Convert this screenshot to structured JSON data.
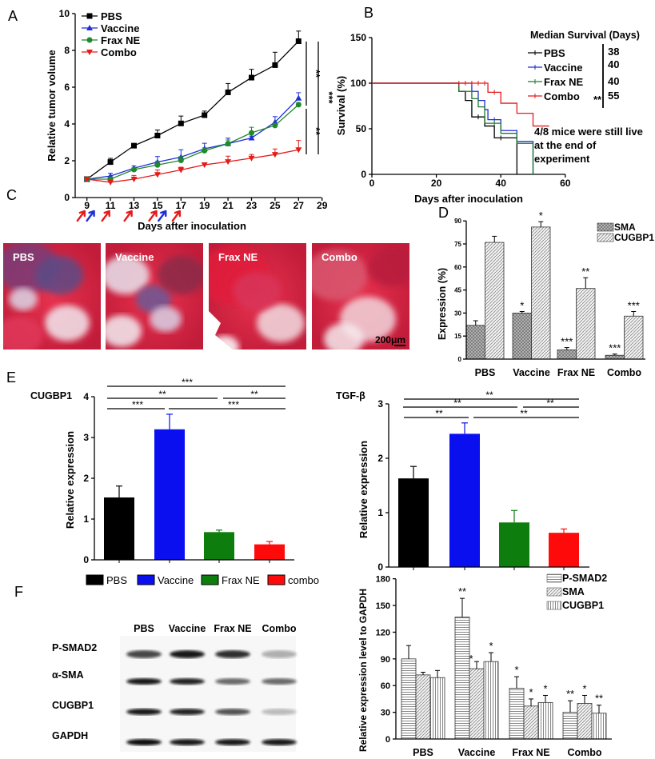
{
  "panel_labels": [
    "A",
    "B",
    "C",
    "D",
    "E",
    "F"
  ],
  "chart_data": [
    {
      "panel": "A",
      "type": "line",
      "xlabel": "Days after inoculation",
      "ylabel": "Relative tumor volume",
      "xlim": [
        8,
        29
      ],
      "ylim": [
        0,
        10
      ],
      "xticks": [
        9,
        11,
        13,
        15,
        17,
        19,
        21,
        23,
        25,
        27,
        29
      ],
      "yticks": [
        0,
        2,
        4,
        6,
        8,
        10
      ],
      "x": [
        9,
        11,
        13,
        15,
        17,
        19,
        21,
        23,
        25,
        27
      ],
      "legend_position": "top-left",
      "series": [
        {
          "name": "PBS",
          "color": "#000000",
          "marker": "square",
          "values": [
            1,
            1.93,
            2.82,
            3.37,
            4.03,
            4.48,
            5.72,
            6.52,
            7.2,
            8.5
          ],
          "errors": [
            0,
            0.2,
            0.1,
            0.3,
            0.4,
            0.22,
            0.48,
            0.45,
            0.7,
            0.55
          ]
        },
        {
          "name": "Vaccine",
          "color": "#1f2fd6",
          "marker": "triangle-up",
          "values": [
            1,
            1.17,
            1.6,
            1.93,
            2.2,
            2.65,
            2.93,
            3.24,
            4.1,
            5.4
          ],
          "errors": [
            0,
            0.15,
            0.12,
            0.3,
            0.4,
            0.3,
            0.3,
            0.1,
            0.3,
            0.3
          ]
        },
        {
          "name": "Frax NE",
          "color": "#1f8a2a",
          "marker": "circle",
          "values": [
            1,
            1.0,
            1.52,
            1.77,
            2.02,
            2.55,
            2.93,
            3.52,
            3.92,
            5.05
          ],
          "errors": [
            0,
            0.1,
            0.1,
            0.2,
            0.2,
            0.15,
            0.2,
            0.3,
            0.1,
            0.1
          ]
        },
        {
          "name": "Combo",
          "color": "#e51b1b",
          "marker": "triangle-down",
          "values": [
            1,
            0.83,
            1.0,
            1.25,
            1.5,
            1.78,
            1.95,
            2.14,
            2.34,
            2.6
          ],
          "errors": [
            0,
            0.1,
            0.2,
            0.25,
            0.15,
            0.1,
            0.3,
            0.2,
            0.3,
            0.5
          ]
        }
      ],
      "significance": [
        {
          "label": "**",
          "compare": [
            "PBS",
            "Vaccine / Frax NE"
          ]
        },
        {
          "label": "**",
          "compare": [
            "Vaccine / Frax NE",
            "Combo"
          ]
        },
        {
          "label": "***",
          "compare": [
            "PBS",
            "Combo"
          ]
        }
      ],
      "injection_arrows": {
        "red_color": "#e51b1b",
        "blue_color": "#1f2fd6",
        "red_days": [
          8.6,
          10.7,
          12.6,
          14.7,
          16.7
        ],
        "blue_days": [
          9.4,
          15.5
        ]
      }
    },
    {
      "panel": "B",
      "type": "line",
      "subtype": "kaplan-meier step",
      "xlabel": "Days after inoculation",
      "ylabel": "Survival (%)",
      "xlim": [
        0,
        60
      ],
      "ylim": [
        0,
        150
      ],
      "xticks": [
        0,
        20,
        40,
        60
      ],
      "yticks": [
        0,
        50,
        100,
        150
      ],
      "legend_title": "Median Survival (Days)",
      "series": [
        {
          "name": "PBS",
          "color": "#000000",
          "median": "38",
          "steps": [
            [
              27,
              91
            ],
            [
              29,
              81
            ],
            [
              31,
              63
            ],
            [
              35,
              53
            ],
            [
              38,
              40
            ],
            [
              45,
              0
            ]
          ],
          "end": 45,
          "censored": [
            [
              33,
              63
            ],
            [
              40,
              40
            ]
          ]
        },
        {
          "name": "Vaccine",
          "color": "#1f2fd6",
          "median": "40",
          "steps": [
            [
              31,
              91
            ],
            [
              33,
              81
            ],
            [
              35,
              71
            ],
            [
              36,
              60
            ],
            [
              40,
              48
            ],
            [
              45,
              36
            ],
            [
              50,
              0
            ]
          ],
          "end": 50,
          "censored": [
            [
              38,
              60
            ]
          ]
        },
        {
          "name": "Frax NE",
          "color": "#1f7a2a",
          "median": "40",
          "steps": [
            [
              27,
              91
            ],
            [
              31,
              83
            ],
            [
              33,
              74
            ],
            [
              35,
              56
            ],
            [
              40,
              45
            ],
            [
              45,
              34
            ],
            [
              50,
              0
            ]
          ],
          "end": 50,
          "censored": [
            [
              38,
              56
            ]
          ]
        },
        {
          "name": "Combo",
          "color": "#e51b1b",
          "median": "55",
          "steps": [
            [
              36,
              90
            ],
            [
              40,
              78
            ],
            [
              45,
              67
            ],
            [
              50,
              53
            ]
          ],
          "end": 55,
          "censored": [
            [
              27,
              100
            ],
            [
              29,
              100
            ],
            [
              31,
              100
            ],
            [
              33,
              100
            ],
            [
              35,
              100
            ],
            [
              38,
              90
            ]
          ]
        }
      ],
      "significance": "**",
      "annotation": [
        "4/8 mice were still live",
        "at the end of",
        "experiment"
      ]
    },
    {
      "panel": "D",
      "type": "bar",
      "ylabel": "Expression (%)",
      "ylim": [
        0,
        90
      ],
      "yticks": [
        0,
        15,
        30,
        45,
        60,
        75,
        90
      ],
      "categories": [
        "PBS",
        "Vaccine",
        "Frax NE",
        "Combo"
      ],
      "legend_position": "top-right",
      "series": [
        {
          "name": "SMA",
          "pattern": "crosshatch",
          "values": [
            22,
            30,
            6,
            2.5
          ],
          "errors": [
            3,
            1,
            1.5,
            0.8
          ],
          "stars": [
            "",
            "*",
            "***",
            "***"
          ]
        },
        {
          "name": "CUGBP1",
          "pattern": "diagonal",
          "values": [
            76,
            86,
            46,
            28
          ],
          "errors": [
            4,
            3.5,
            7,
            3
          ],
          "stars": [
            "",
            "*",
            "**",
            "***"
          ]
        }
      ]
    },
    {
      "panel": "E",
      "type": "bar",
      "title": "CUGBP1",
      "ylabel": "Relative expression",
      "ylim": [
        0,
        4
      ],
      "yticks": [
        0,
        1,
        2,
        3,
        4
      ],
      "categories": [
        "PBS",
        "Vaccine",
        "Frax NE",
        "combo"
      ],
      "colors": [
        "#000000",
        "#0a0ff0",
        "#0d7d0d",
        "#ff0a0a"
      ],
      "values": [
        1.53,
        3.2,
        0.68,
        0.38
      ],
      "errors": [
        0.28,
        0.37,
        0.05,
        0.07
      ],
      "brackets": [
        {
          "groups": [
            0,
            3
          ],
          "label": "***"
        },
        {
          "groups": [
            0,
            2
          ],
          "label": "**"
        },
        {
          "groups": [
            2,
            3
          ],
          "label": "**"
        },
        {
          "groups": [
            0,
            1
          ],
          "label": "***"
        },
        {
          "groups": [
            1,
            3
          ],
          "label": "***"
        }
      ],
      "legend_position": "bottom"
    },
    {
      "panel": "E",
      "type": "bar",
      "title": "TGF-β",
      "ylabel": "Relative expression",
      "ylim": [
        0,
        3
      ],
      "yticks": [
        0,
        1,
        2,
        3
      ],
      "categories": [
        "PBS",
        "Vaccine",
        "Frax NE",
        "combo"
      ],
      "colors": [
        "#000000",
        "#0a0ff0",
        "#0d7d0d",
        "#ff0a0a"
      ],
      "values": [
        1.63,
        2.45,
        0.82,
        0.63
      ],
      "errors": [
        0.22,
        0.2,
        0.22,
        0.07
      ],
      "brackets": [
        {
          "groups": [
            0,
            3
          ],
          "label": "**"
        },
        {
          "groups": [
            0,
            2
          ],
          "label": "**"
        },
        {
          "groups": [
            2,
            3
          ],
          "label": "**"
        },
        {
          "groups": [
            0,
            1
          ],
          "label": "**"
        },
        {
          "groups": [
            1,
            3
          ],
          "label": "**"
        }
      ]
    },
    {
      "panel": "F",
      "type": "bar",
      "ylabel": "Relative expression level to GAPDH",
      "ylim": [
        0,
        180
      ],
      "yticks": [
        0,
        30,
        60,
        90,
        120,
        150,
        180
      ],
      "categories": [
        "PBS",
        "Vaccine",
        "Frax NE",
        "Combo"
      ],
      "legend_position": "top-right",
      "series": [
        {
          "name": "P-SMAD2",
          "pattern": "horizontal",
          "values": [
            90,
            137,
            57,
            30
          ],
          "errors": [
            15,
            21,
            13,
            13
          ],
          "stars": [
            "",
            "**",
            "*",
            "**"
          ]
        },
        {
          "name": "SMA",
          "pattern": "diagonal",
          "values": [
            72,
            79,
            37,
            40
          ],
          "errors": [
            3,
            8,
            8,
            9
          ],
          "stars": [
            "",
            "*",
            "*",
            "*"
          ]
        },
        {
          "name": "CUGBP1",
          "pattern": "vertical",
          "values": [
            69,
            87,
            41,
            29
          ],
          "errors": [
            8,
            10,
            8,
            9
          ],
          "stars": [
            "",
            "*",
            "*",
            "**"
          ]
        }
      ]
    }
  ],
  "micrographs": {
    "labels": [
      "PBS",
      "Vaccine",
      "Frax NE",
      "Combo"
    ],
    "scale_bar": "200μm"
  },
  "western_blot": {
    "columns": [
      "PBS",
      "Vaccine",
      "Frax NE",
      "Combo"
    ],
    "rows": [
      {
        "label": "P-SMAD2",
        "band_intensity": [
          0.75,
          0.95,
          0.85,
          0.3
        ]
      },
      {
        "label": "α-SMA",
        "band_intensity": [
          0.95,
          0.9,
          0.6,
          0.6
        ]
      },
      {
        "label": "CUGBP1",
        "band_intensity": [
          0.95,
          0.9,
          0.7,
          0.25
        ]
      },
      {
        "label": "GAPDH",
        "band_intensity": [
          1,
          0.95,
          0.95,
          0.95
        ]
      }
    ]
  }
}
